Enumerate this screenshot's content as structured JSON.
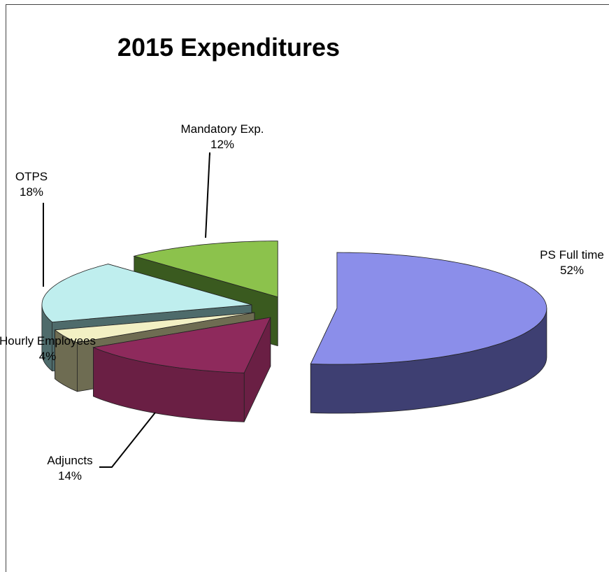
{
  "chart_data": {
    "type": "pie",
    "title": "2015  Expenditures",
    "categories": [
      "PS Full time",
      "Adjuncts",
      "Hourly Employees",
      "OTPS",
      "Mandatory Exp."
    ],
    "values": [
      52,
      14,
      4,
      18,
      12
    ],
    "value_labels": [
      "52%",
      "14%",
      "4%",
      "18%",
      "12%"
    ],
    "colors": [
      "#8b8eea",
      "#8e2a5c",
      "#f2f0c4",
      "#bfeeee",
      "#8cc24c"
    ],
    "side_colors": [
      "#3e3f72",
      "#6a1f44",
      "#6e6c52",
      "#4e6b6b",
      "#3a5a1f"
    ]
  }
}
